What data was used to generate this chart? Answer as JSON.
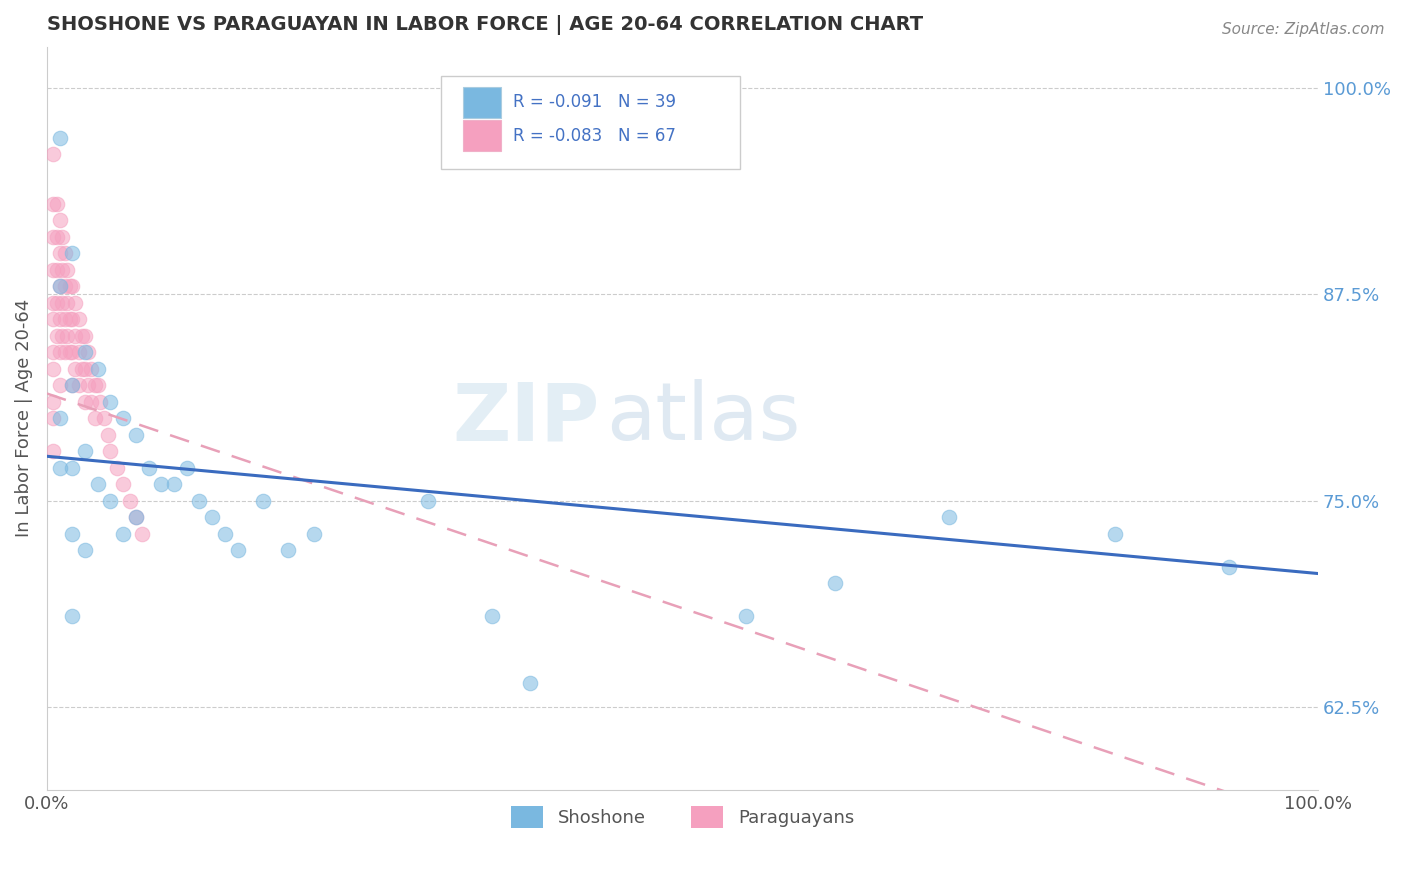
{
  "title": "SHOSHONE VS PARAGUAYAN IN LABOR FORCE | AGE 20-64 CORRELATION CHART",
  "source_text": "Source: ZipAtlas.com",
  "ylabel": "In Labor Force | Age 20-64",
  "legend_label_1": "Shoshone",
  "legend_label_2": "Paraguayans",
  "watermark_zip": "ZIP",
  "watermark_atlas": "atlas",
  "xlim": [
    0.0,
    1.0
  ],
  "ylim": [
    0.575,
    1.025
  ],
  "x_tick_labels": [
    "0.0%",
    "100.0%"
  ],
  "y_tick_labels_right": [
    "62.5%",
    "75.0%",
    "87.5%",
    "100.0%"
  ],
  "y_tick_positions_right": [
    0.625,
    0.75,
    0.875,
    1.0
  ],
  "color_shoshone": "#7ab8e0",
  "color_paraguayan": "#f5a0bf",
  "trendline_shoshone": "#3a6bbf",
  "trendline_paraguayan": "#e8a0b8",
  "background_color": "#ffffff",
  "shoshone_x": [
    0.01,
    0.01,
    0.01,
    0.01,
    0.02,
    0.02,
    0.02,
    0.02,
    0.02,
    0.03,
    0.03,
    0.03,
    0.04,
    0.04,
    0.05,
    0.05,
    0.06,
    0.06,
    0.07,
    0.07,
    0.08,
    0.09,
    0.1,
    0.11,
    0.12,
    0.13,
    0.14,
    0.15,
    0.17,
    0.19,
    0.21,
    0.3,
    0.35,
    0.38,
    0.55,
    0.62,
    0.71,
    0.84,
    0.93
  ],
  "shoshone_y": [
    0.97,
    0.88,
    0.8,
    0.77,
    0.9,
    0.82,
    0.77,
    0.73,
    0.68,
    0.84,
    0.78,
    0.72,
    0.83,
    0.76,
    0.81,
    0.75,
    0.8,
    0.73,
    0.79,
    0.74,
    0.77,
    0.76,
    0.76,
    0.77,
    0.75,
    0.74,
    0.73,
    0.72,
    0.75,
    0.72,
    0.73,
    0.75,
    0.68,
    0.64,
    0.68,
    0.7,
    0.74,
    0.73,
    0.71
  ],
  "paraguayan_x": [
    0.005,
    0.005,
    0.005,
    0.005,
    0.005,
    0.005,
    0.005,
    0.005,
    0.005,
    0.005,
    0.005,
    0.008,
    0.008,
    0.008,
    0.008,
    0.008,
    0.01,
    0.01,
    0.01,
    0.01,
    0.01,
    0.01,
    0.012,
    0.012,
    0.012,
    0.012,
    0.014,
    0.014,
    0.014,
    0.014,
    0.016,
    0.016,
    0.016,
    0.018,
    0.018,
    0.018,
    0.02,
    0.02,
    0.02,
    0.02,
    0.022,
    0.022,
    0.022,
    0.025,
    0.025,
    0.025,
    0.028,
    0.028,
    0.03,
    0.03,
    0.03,
    0.032,
    0.032,
    0.035,
    0.035,
    0.038,
    0.038,
    0.04,
    0.042,
    0.045,
    0.048,
    0.05,
    0.055,
    0.06,
    0.065,
    0.07,
    0.075
  ],
  "paraguayan_y": [
    0.96,
    0.93,
    0.91,
    0.89,
    0.87,
    0.86,
    0.84,
    0.83,
    0.81,
    0.8,
    0.78,
    0.93,
    0.91,
    0.89,
    0.87,
    0.85,
    0.92,
    0.9,
    0.88,
    0.86,
    0.84,
    0.82,
    0.91,
    0.89,
    0.87,
    0.85,
    0.9,
    0.88,
    0.86,
    0.84,
    0.89,
    0.87,
    0.85,
    0.88,
    0.86,
    0.84,
    0.88,
    0.86,
    0.84,
    0.82,
    0.87,
    0.85,
    0.83,
    0.86,
    0.84,
    0.82,
    0.85,
    0.83,
    0.85,
    0.83,
    0.81,
    0.84,
    0.82,
    0.83,
    0.81,
    0.82,
    0.8,
    0.82,
    0.81,
    0.8,
    0.79,
    0.78,
    0.77,
    0.76,
    0.75,
    0.74,
    0.73
  ]
}
